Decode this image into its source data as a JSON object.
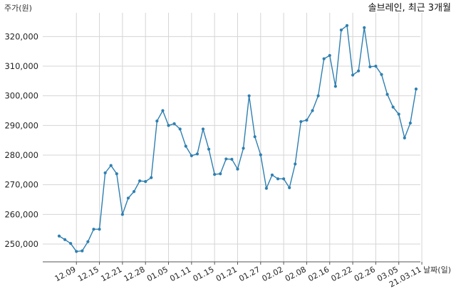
{
  "chart_data": {
    "type": "line",
    "title": "솔브레인, 최근 3개월",
    "ylabel": "주가(원)",
    "xlabel": "날짜(일)",
    "ylim": [
      244000,
      328000
    ],
    "yticks": [
      250000,
      260000,
      270000,
      280000,
      290000,
      300000,
      310000,
      320000
    ],
    "ytick_labels": [
      "250,000",
      "260,000",
      "270,000",
      "280,000",
      "290,000",
      "300,000",
      "310,000",
      "320,000"
    ],
    "xtick_labels": [
      "12.09",
      "12.15",
      "12.21",
      "12.28",
      "01.05",
      "01.11",
      "01.15",
      "01.21",
      "01.27",
      "02.02",
      "02.08",
      "02.16",
      "02.22",
      "02.26",
      "03.05",
      "21.03.11"
    ],
    "xtick_positions": [
      3,
      7,
      11,
      15,
      19,
      23,
      27,
      31,
      35,
      39,
      43,
      47,
      51,
      55,
      59,
      63
    ],
    "grid": true,
    "line_color": "#2e7fb0",
    "series": [
      {
        "name": "",
        "values": [
          252700,
          251500,
          250200,
          247500,
          247700,
          250800,
          255000,
          255000,
          274000,
          276500,
          273700,
          260000,
          265500,
          267700,
          271300,
          271100,
          272400,
          291500,
          295000,
          290000,
          290600,
          288800,
          283000,
          279800,
          280400,
          288800,
          282000,
          273500,
          273700,
          278700,
          278600,
          275300,
          282300,
          300000,
          286200,
          280100,
          268800,
          273300,
          272000,
          272000,
          269000,
          277000,
          291300,
          291800,
          295000,
          300000,
          312500,
          313600,
          303200,
          322200,
          323700,
          307000,
          308400,
          323000,
          309800,
          310000,
          307200,
          300500,
          296200,
          293800,
          285800,
          290800,
          302300
        ]
      }
    ]
  }
}
